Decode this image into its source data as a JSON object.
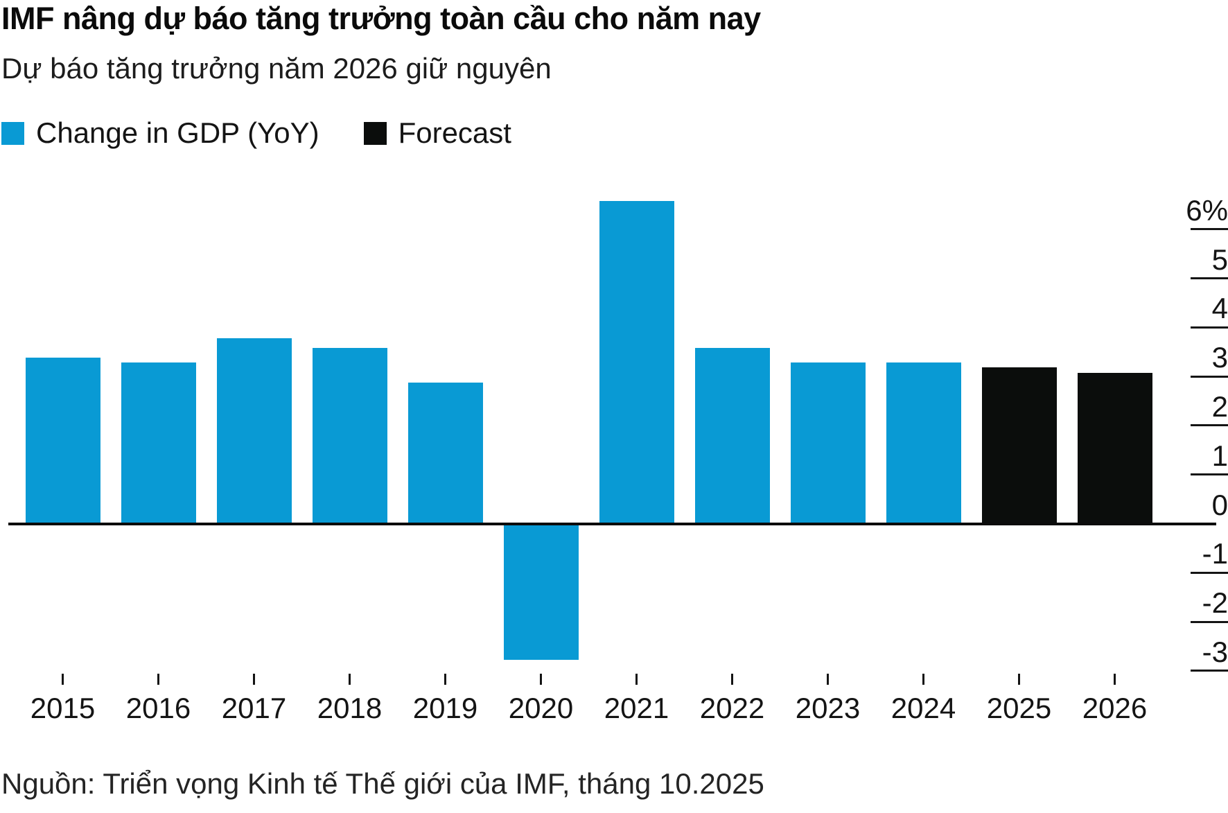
{
  "header": {
    "title": "IMF nâng dự báo tăng trưởng toàn cầu cho năm nay",
    "subtitle": "Dự báo tăng trưởng năm 2026 giữ nguyên"
  },
  "legend": [
    {
      "key": "actual",
      "label": "Change in GDP (YoY)",
      "color": "#099ad4"
    },
    {
      "key": "forecast",
      "label": "Forecast",
      "color": "#0b0d0c"
    }
  ],
  "chart_data": {
    "type": "bar",
    "title": "IMF nâng dự báo tăng trưởng toàn cầu cho năm nay",
    "subtitle": "Dự báo tăng trưởng năm 2026 giữ nguyên",
    "categories": [
      "2015",
      "2016",
      "2017",
      "2018",
      "2019",
      "2020",
      "2021",
      "2022",
      "2023",
      "2024",
      "2025",
      "2026"
    ],
    "values": [
      3.4,
      3.3,
      3.8,
      3.6,
      2.9,
      -2.8,
      6.6,
      3.6,
      3.3,
      3.3,
      3.2,
      3.1
    ],
    "forecast": [
      false,
      false,
      false,
      false,
      false,
      false,
      false,
      false,
      false,
      false,
      true,
      true
    ],
    "series": [
      {
        "name": "Change in GDP (YoY)",
        "values": [
          3.4,
          3.3,
          3.8,
          3.6,
          2.9,
          -2.8,
          6.6,
          3.6,
          3.3,
          3.3,
          null,
          null
        ]
      },
      {
        "name": "Forecast",
        "values": [
          null,
          null,
          null,
          null,
          null,
          null,
          null,
          null,
          null,
          null,
          3.2,
          3.1
        ]
      }
    ],
    "xlabel": "",
    "ylabel": "",
    "y_axis": {
      "tick_values": [
        6,
        5,
        4,
        3,
        2,
        1,
        0,
        -1,
        -2,
        -3
      ],
      "tick_labels": [
        "6%",
        "5",
        "4",
        "3",
        "2",
        "1",
        "0",
        "-1",
        "-2",
        "-3"
      ],
      "max": 6,
      "min": -3,
      "grid": "right-ticks-only",
      "position": "right"
    },
    "legend_position": "top-left",
    "colors": {
      "actual": "#099ad4",
      "forecast": "#0b0d0c"
    }
  },
  "source": {
    "text": "Nguồn: Triển vọng Kinh tế Thế giới của IMF, tháng 10.2025"
  }
}
